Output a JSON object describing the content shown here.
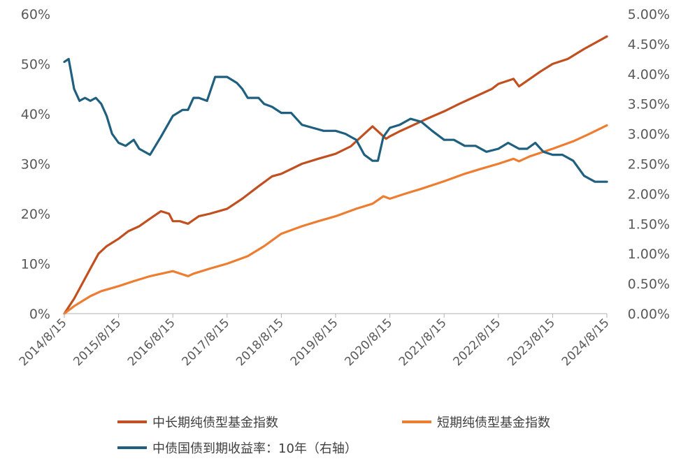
{
  "chart_data": {
    "type": "line",
    "x_tick_labels": [
      "2014/8/15",
      "2015/8/15",
      "2016/8/15",
      "2017/8/15",
      "2018/8/15",
      "2019/8/15",
      "2020/8/15",
      "2021/8/15",
      "2022/8/15",
      "2023/8/15",
      "2024/8/15"
    ],
    "x_range": [
      2014.62,
      2024.62
    ],
    "y_left": {
      "range": [
        0,
        60
      ],
      "tick_labels": [
        "0%",
        "10%",
        "20%",
        "30%",
        "40%",
        "50%",
        "60%"
      ],
      "tick_values": [
        0,
        10,
        20,
        30,
        40,
        50,
        60
      ]
    },
    "y_right": {
      "range": [
        0,
        5
      ],
      "tick_labels": [
        "0.00%",
        "0.50%",
        "1.00%",
        "1.50%",
        "2.00%",
        "2.50%",
        "3.00%",
        "3.50%",
        "4.00%",
        "4.50%",
        "5.00%"
      ],
      "tick_values": [
        0,
        0.5,
        1,
        1.5,
        2,
        2.5,
        3,
        3.5,
        4,
        4.5,
        5
      ]
    },
    "grid": false,
    "legend_position": "bottom",
    "series": [
      {
        "name": "中长期纯债型基金指数",
        "axis": "left",
        "color": "#c0501f",
        "x": [
          2014.62,
          2014.8,
          2014.95,
          2015.1,
          2015.25,
          2015.4,
          2015.62,
          2015.8,
          2016.0,
          2016.2,
          2016.4,
          2016.55,
          2016.62,
          2016.75,
          2016.9,
          2017.1,
          2017.3,
          2017.62,
          2017.9,
          2018.2,
          2018.45,
          2018.62,
          2019.0,
          2019.3,
          2019.62,
          2019.9,
          2020.1,
          2020.3,
          2020.45,
          2020.55,
          2020.62,
          2020.8,
          2021.0,
          2021.3,
          2021.62,
          2021.9,
          2022.2,
          2022.5,
          2022.62,
          2022.9,
          2023.0,
          2023.2,
          2023.4,
          2023.62,
          2023.9,
          2024.2,
          2024.62
        ],
        "values": [
          0,
          3,
          6,
          9,
          12,
          13.5,
          15,
          16.5,
          17.5,
          19,
          20.5,
          20,
          18.5,
          18.5,
          18,
          19.5,
          20,
          21,
          23,
          25.5,
          27.5,
          28,
          30,
          31,
          32,
          33.5,
          35.5,
          37.5,
          36,
          35,
          35.5,
          36.5,
          37.5,
          39,
          40.5,
          42,
          43.5,
          45,
          46,
          47,
          45.5,
          47,
          48.5,
          50,
          51,
          53,
          55.5
        ]
      },
      {
        "name": "短期纯债型基金指数",
        "axis": "left",
        "color": "#ed7d31",
        "x": [
          2014.62,
          2014.8,
          2014.95,
          2015.1,
          2015.3,
          2015.62,
          2015.9,
          2016.2,
          2016.62,
          2016.9,
          2017.0,
          2017.3,
          2017.62,
          2018.0,
          2018.3,
          2018.62,
          2019.0,
          2019.3,
          2019.62,
          2020.0,
          2020.3,
          2020.5,
          2020.62,
          2020.9,
          2021.2,
          2021.62,
          2022.0,
          2022.3,
          2022.62,
          2022.9,
          2023.0,
          2023.2,
          2023.62,
          2024.0,
          2024.3,
          2024.62
        ],
        "values": [
          0,
          1.5,
          2.5,
          3.5,
          4.5,
          5.5,
          6.5,
          7.5,
          8.5,
          7.5,
          8,
          9,
          10,
          11.5,
          13.5,
          16,
          17.5,
          18.5,
          19.5,
          21,
          22,
          23.5,
          23,
          24,
          25,
          26.5,
          28,
          29,
          30,
          31,
          30.5,
          31.5,
          33,
          34.5,
          36,
          37.7
        ]
      },
      {
        "name": "中债国债到期收益率：10年（右轴）",
        "axis": "right",
        "color": "#1f5f7f",
        "x": [
          2014.62,
          2014.7,
          2014.8,
          2014.9,
          2015.0,
          2015.1,
          2015.2,
          2015.3,
          2015.4,
          2015.5,
          2015.62,
          2015.75,
          2015.9,
          2016.0,
          2016.2,
          2016.4,
          2016.62,
          2016.8,
          2016.9,
          2017.0,
          2017.1,
          2017.25,
          2017.4,
          2017.62,
          2017.8,
          2017.9,
          2018.0,
          2018.1,
          2018.2,
          2018.3,
          2018.45,
          2018.62,
          2018.8,
          2019.0,
          2019.2,
          2019.4,
          2019.62,
          2019.8,
          2020.0,
          2020.15,
          2020.3,
          2020.4,
          2020.5,
          2020.62,
          2020.8,
          2021.0,
          2021.2,
          2021.4,
          2021.62,
          2021.8,
          2022.0,
          2022.2,
          2022.4,
          2022.62,
          2022.8,
          2023.0,
          2023.15,
          2023.3,
          2023.45,
          2023.62,
          2023.8,
          2024.0,
          2024.2,
          2024.4,
          2024.62
        ],
        "values": [
          4.2,
          4.25,
          3.75,
          3.55,
          3.6,
          3.55,
          3.6,
          3.5,
          3.3,
          3.0,
          2.85,
          2.8,
          2.9,
          2.75,
          2.65,
          2.95,
          3.3,
          3.4,
          3.4,
          3.6,
          3.6,
          3.55,
          3.95,
          3.95,
          3.85,
          3.75,
          3.6,
          3.6,
          3.6,
          3.5,
          3.45,
          3.35,
          3.35,
          3.15,
          3.1,
          3.05,
          3.05,
          3.0,
          2.9,
          2.65,
          2.55,
          2.55,
          2.95,
          3.1,
          3.15,
          3.25,
          3.2,
          3.05,
          2.9,
          2.9,
          2.8,
          2.8,
          2.7,
          2.75,
          2.85,
          2.75,
          2.75,
          2.85,
          2.7,
          2.65,
          2.65,
          2.55,
          2.3,
          2.2,
          2.2
        ]
      }
    ]
  },
  "legend": [
    {
      "label": "中长期纯债型基金指数",
      "color": "#c0501f"
    },
    {
      "label": "短期纯债型基金指数",
      "color": "#ed7d31"
    },
    {
      "label": "中债国债到期收益率：10年（右轴）",
      "color": "#1f5f7f"
    }
  ]
}
